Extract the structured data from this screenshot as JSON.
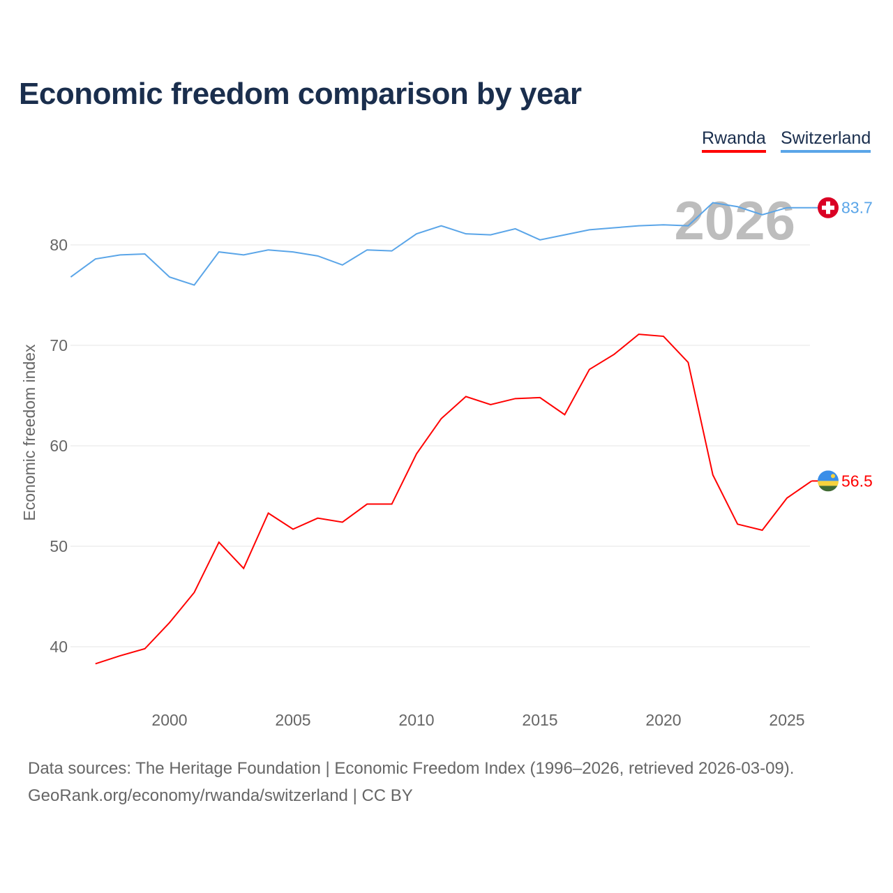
{
  "chart_data": {
    "type": "line",
    "title": "Economic freedom comparison by year",
    "xlabel": "",
    "ylabel": "Economic freedom index",
    "xlim": [
      1996,
      2026
    ],
    "ylim": [
      35,
      87
    ],
    "x_ticks": [
      2000,
      2005,
      2010,
      2015,
      2020,
      2025
    ],
    "y_ticks": [
      40,
      50,
      60,
      70,
      80
    ],
    "grid": true,
    "legend_position": "top-right",
    "watermark_year": "2026",
    "series": [
      {
        "name": "Rwanda",
        "color": "#ff0000",
        "end_label": "56.5",
        "flag": "rwanda-flag",
        "x": [
          1997,
          1998,
          1999,
          2000,
          2001,
          2002,
          2003,
          2004,
          2005,
          2006,
          2007,
          2008,
          2009,
          2010,
          2011,
          2012,
          2013,
          2014,
          2015,
          2016,
          2017,
          2018,
          2019,
          2020,
          2021,
          2022,
          2023,
          2024,
          2025,
          2026
        ],
        "values": [
          38.3,
          39.1,
          39.8,
          42.4,
          45.4,
          50.4,
          47.8,
          53.3,
          51.7,
          52.8,
          52.4,
          54.2,
          54.2,
          59.2,
          62.7,
          64.9,
          64.1,
          64.7,
          64.8,
          63.1,
          67.6,
          69.1,
          71.1,
          70.9,
          68.3,
          57.1,
          52.2,
          51.6,
          54.8,
          56.5
        ]
      },
      {
        "name": "Switzerland",
        "color": "#5aa5e8",
        "end_label": "83.7",
        "flag": "switzerland-flag",
        "x": [
          1996,
          1997,
          1998,
          1999,
          2000,
          2001,
          2002,
          2003,
          2004,
          2005,
          2006,
          2007,
          2008,
          2009,
          2010,
          2011,
          2012,
          2013,
          2014,
          2015,
          2016,
          2017,
          2018,
          2019,
          2020,
          2021,
          2022,
          2023,
          2024,
          2025,
          2026
        ],
        "values": [
          76.8,
          78.6,
          79.0,
          79.1,
          76.8,
          76.0,
          79.3,
          79.0,
          79.5,
          79.3,
          78.9,
          78.0,
          79.5,
          79.4,
          81.1,
          81.9,
          81.1,
          81.0,
          81.6,
          80.5,
          81.0,
          81.5,
          81.7,
          81.9,
          82.0,
          81.9,
          84.2,
          83.8,
          83.0,
          83.7,
          83.7
        ]
      }
    ]
  },
  "footer": {
    "line1": "Data sources: The Heritage Foundation | Economic Freedom Index (1996–2026, retrieved 2026-03-09).",
    "line2": "GeoRank.org/economy/rwanda/switzerland | CC BY"
  }
}
